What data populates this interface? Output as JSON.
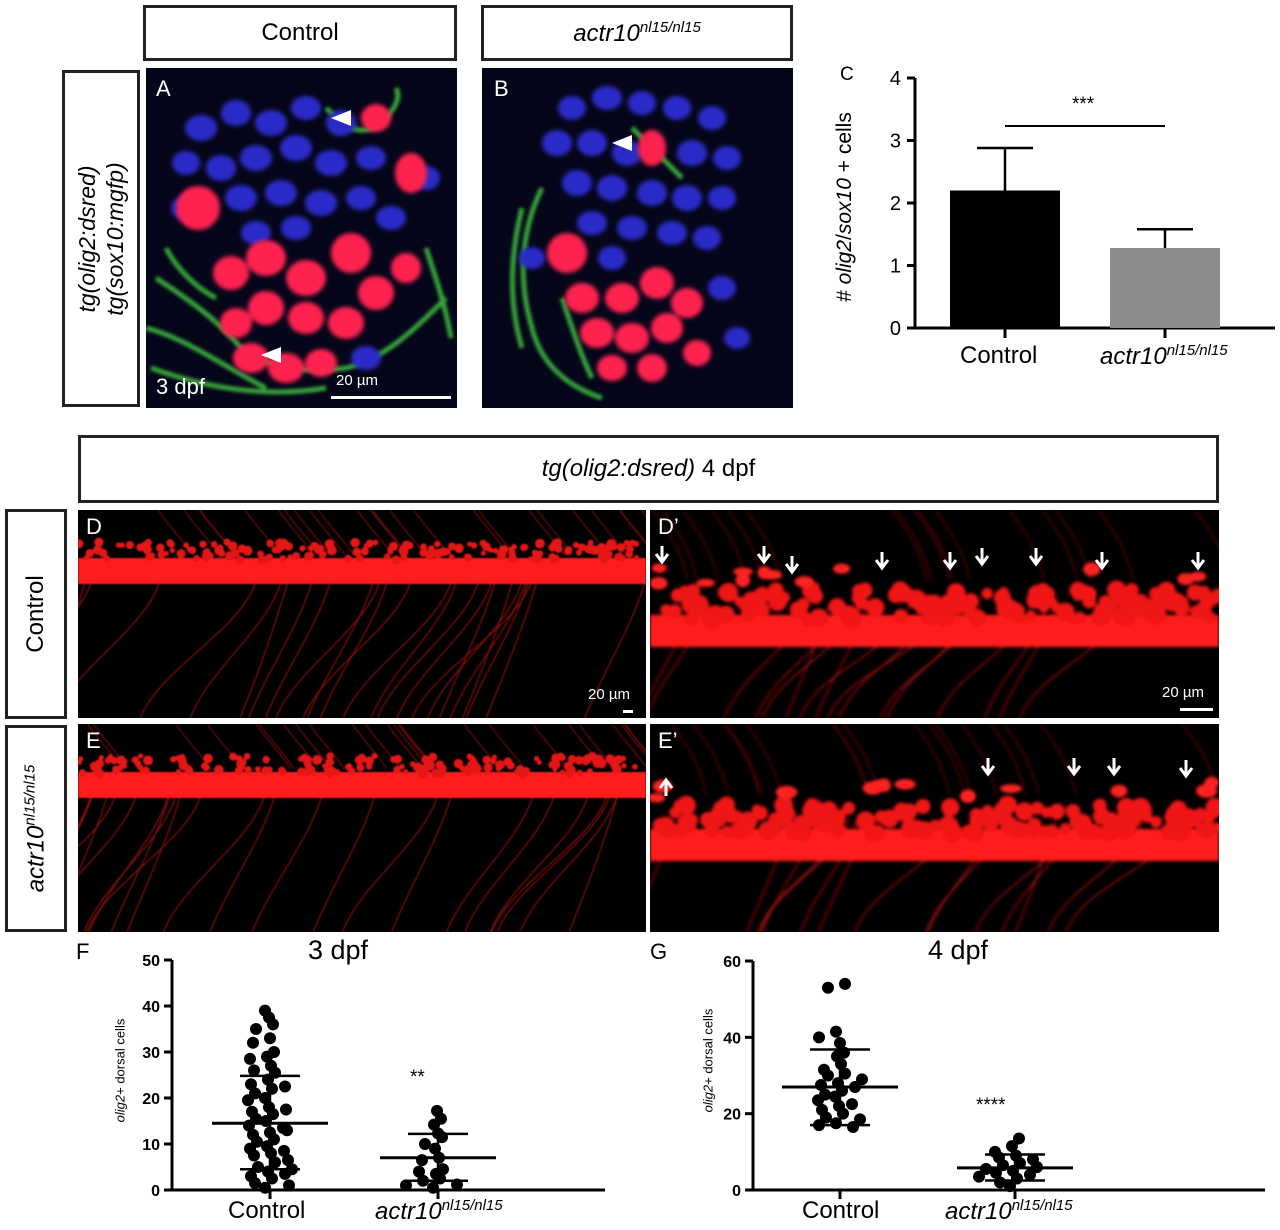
{
  "panelA": {
    "header": "Control",
    "label": "A",
    "age": "3 dpf",
    "scale": "20 µm"
  },
  "panelB": {
    "header_gene": "actr10",
    "header_allele": "nl15/nl15",
    "label": "B"
  },
  "row_label_top": {
    "line1": "tg(olig2:dsred)",
    "line2": "tg(sox10:mgfp)"
  },
  "panelC": {
    "label": "C",
    "ylabel_gene1": "olig2",
    "ylabel_gene2": "sox10",
    "ylabel_prefix": "# ",
    "ylabel_suffix": " + cells",
    "significance": "***"
  },
  "section2_header": {
    "italic": "tg(olig2:dsred)",
    "rest": " 4 dpf"
  },
  "panelD": {
    "label": "D",
    "scale": "20 µm"
  },
  "panelD2": {
    "label": "D’",
    "scale": "20 µm"
  },
  "panelE": {
    "label": "E"
  },
  "panelE2": {
    "label": "E’"
  },
  "row_control": "Control",
  "row_mutant_gene": "actr10",
  "row_mutant_allele": "nl15/nl15",
  "panelF": {
    "label": "F",
    "title": "3 dpf",
    "ylabel_gene": "olig2",
    "ylabel_rest": "+ dorsal cells",
    "significance": "**"
  },
  "panelG": {
    "label": "G",
    "title": "4 dpf",
    "ylabel_gene": "olig2",
    "ylabel_rest": "+ dorsal cells",
    "significance": "****"
  },
  "group_control": "Control",
  "group_mutant_gene": "actr10",
  "group_mutant_allele": "nl15/nl15",
  "chart_data": [
    {
      "id": "C",
      "type": "bar",
      "categories": [
        "Control",
        "actr10nl15/nl15"
      ],
      "values": [
        2.2,
        1.28
      ],
      "error": [
        0.68,
        0.3
      ],
      "colors": [
        "#000000",
        "#8c8c8c"
      ],
      "ylim": [
        0,
        4
      ],
      "yticks": [
        0,
        1,
        2,
        3,
        4
      ]
    },
    {
      "id": "F",
      "type": "scatter",
      "categories": [
        "Control",
        "actr10nl15/nl15"
      ],
      "ylim": [
        0,
        50
      ],
      "yticks": [
        0,
        10,
        20,
        30,
        40,
        50
      ],
      "groups": [
        {
          "mean": 14.5,
          "sd_low": 4.5,
          "sd_high": 24.8,
          "points": [
            39,
            37.5,
            36,
            35,
            33,
            32,
            30,
            29,
            28.5,
            27,
            26,
            25.5,
            24,
            23,
            22,
            21,
            20,
            19.5,
            18,
            17,
            16.5,
            15.5,
            15,
            14,
            13.5,
            12.5,
            12,
            11,
            10.5,
            9.5,
            9,
            8,
            7.5,
            6.5,
            6,
            5,
            4.5,
            4,
            3,
            2.5,
            1.5,
            1,
            0.5,
            3.5,
            8.5,
            13,
            17.5,
            22.5
          ]
        },
        {
          "mean": 7,
          "sd_low": 2,
          "sd_high": 12.2,
          "points": [
            17.2,
            15.5,
            14.2,
            12.3,
            11.5,
            10,
            9,
            7,
            6.5,
            4.5,
            3.5,
            2.5,
            2,
            1.2,
            1,
            0.5,
            4
          ]
        }
      ]
    },
    {
      "id": "G",
      "type": "scatter",
      "categories": [
        "Control",
        "actr10nl15/nl15"
      ],
      "ylim": [
        0,
        60
      ],
      "yticks": [
        0,
        20,
        40,
        60
      ],
      "groups": [
        {
          "mean": 27,
          "sd_low": 17,
          "sd_high": 36.8,
          "points": [
            54,
            53,
            41.5,
            40,
            38.5,
            36,
            35,
            33,
            31.5,
            30.5,
            30,
            29,
            28,
            27.5,
            27,
            26,
            25,
            24.5,
            23.5,
            22.5,
            22,
            21,
            20,
            19,
            18.5,
            17.5,
            17,
            16.5
          ]
        },
        {
          "mean": 5.8,
          "sd_low": 2.5,
          "sd_high": 9.3,
          "points": [
            13.5,
            11.5,
            10,
            9,
            8.5,
            8,
            7,
            6.5,
            6,
            5.5,
            5,
            4.5,
            4,
            3.5,
            3,
            2,
            1
          ]
        }
      ]
    }
  ]
}
